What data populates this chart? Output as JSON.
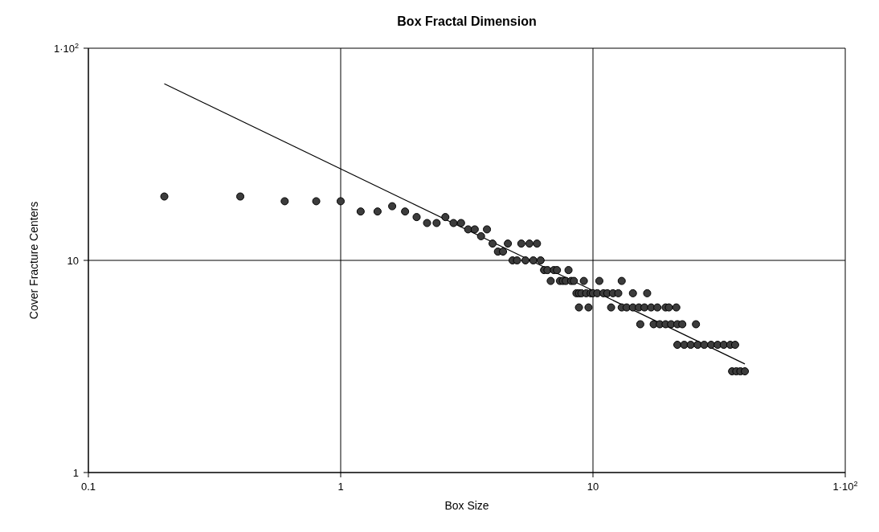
{
  "chart_data": {
    "type": "scatter",
    "title": "Box Fractal Dimension",
    "xlabel": "Box Size",
    "ylabel": "Cover Fracture Centers",
    "log": "xy",
    "grid": true,
    "marker": "circle",
    "xlim": [
      0.1,
      100
    ],
    "xticks": [
      0.1,
      1,
      10,
      {
        "value": 100,
        "label": "1·10$^{2}$"
      }
    ],
    "ylim": [
      1,
      100
    ],
    "yticks": [
      1,
      10,
      {
        "value": 100,
        "label": "1·10$^{2}$"
      }
    ],
    "series": [
      {
        "type": "scatter",
        "color": "#3c3c3c",
        "x": [
          0.2,
          0.4,
          0.6,
          0.8,
          1.0,
          1.2,
          1.4,
          1.6,
          1.8,
          2.0,
          2.2,
          2.4,
          2.6,
          2.8,
          3.0,
          3.2,
          3.4,
          3.6,
          3.8,
          4.0,
          4.2,
          4.4,
          4.6,
          4.8,
          5.0,
          5.2,
          5.4,
          5.6,
          5.8,
          6.0,
          6.2,
          6.4,
          6.6,
          6.8,
          7.0,
          7.2,
          7.4,
          7.6,
          7.8,
          8.0,
          8.2,
          8.4,
          8.6,
          8.8,
          8.8,
          9.0,
          9.2,
          9.4,
          9.6,
          9.8,
          10.0,
          10.4,
          10.6,
          11.0,
          11.4,
          11.8,
          12.0,
          12.6,
          13.0,
          13.0,
          13.6,
          14.4,
          14.4,
          15.2,
          15.4,
          16.0,
          16.4,
          17.0,
          17.4,
          18.0,
          18.4,
          19.4,
          19.4,
          20.0,
          20.4,
          21.4,
          21.6,
          21.6,
          22.6,
          23.0,
          24.4,
          25.6,
          26.0,
          27.6,
          29.4,
          31.2,
          33.0,
          35.0,
          35.6,
          36.6,
          37.0,
          38.4,
          40.0
        ],
        "values": [
          20,
          20,
          19,
          19,
          19,
          17,
          17,
          18,
          17,
          16,
          15,
          15,
          16,
          15,
          15,
          14,
          14,
          13,
          14,
          12,
          11,
          11,
          12,
          10,
          10,
          12,
          10,
          12,
          10,
          12,
          10,
          9,
          9,
          8,
          9,
          9,
          8,
          8,
          8,
          9,
          8,
          8,
          7,
          7,
          6,
          7,
          8,
          7,
          6,
          7,
          7,
          7,
          8,
          7,
          7,
          6,
          7,
          7,
          8,
          6,
          6,
          7,
          6,
          6,
          5,
          6,
          7,
          6,
          5,
          6,
          5,
          6,
          5,
          6,
          5,
          6,
          5,
          4,
          5,
          4,
          4,
          5,
          4,
          4,
          4,
          4,
          4,
          4,
          3,
          4,
          3,
          3,
          3
        ]
      },
      {
        "type": "line",
        "color": "#000000",
        "marker": "none",
        "x": [
          0.2,
          40
        ],
        "values": [
          68,
          3.25
        ]
      }
    ]
  }
}
